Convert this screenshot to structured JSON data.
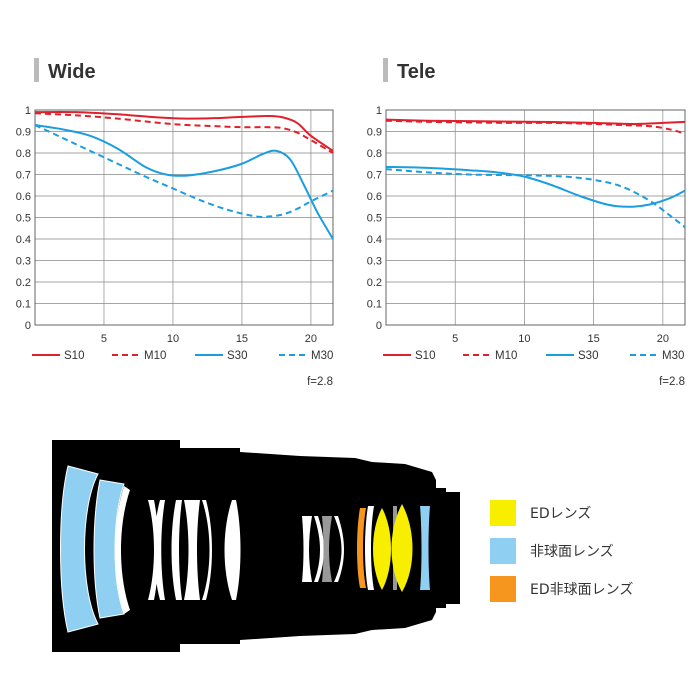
{
  "chart_data": [
    {
      "type": "line",
      "title": "Wide",
      "xlim": [
        0,
        21.6
      ],
      "ylim": [
        0,
        1
      ],
      "xticks": [
        5,
        10,
        15,
        20
      ],
      "yticks": [
        0,
        0.1,
        0.2,
        0.3,
        0.4,
        0.5,
        0.6,
        0.7,
        0.8,
        0.9,
        1
      ],
      "ytick_labels": [
        "0",
        "0.1",
        "0.2",
        "0.3",
        "0.4",
        "0.5",
        "0.6",
        "0.7",
        "0.8",
        "0.9",
        "1"
      ],
      "grid": true,
      "note": "f=2.8",
      "series": [
        {
          "name": "S10",
          "color": "#e0212b",
          "dash": false,
          "x": [
            0,
            3,
            6,
            9,
            11,
            13,
            15,
            17,
            18,
            19,
            20,
            21.6
          ],
          "y": [
            0.99,
            0.99,
            0.98,
            0.965,
            0.96,
            0.962,
            0.968,
            0.972,
            0.965,
            0.94,
            0.88,
            0.81
          ]
        },
        {
          "name": "M10",
          "color": "#e0212b",
          "dash": true,
          "x": [
            0,
            3,
            6,
            9,
            11,
            13,
            15,
            17,
            18,
            19,
            20,
            21.6
          ],
          "y": [
            0.985,
            0.975,
            0.96,
            0.94,
            0.93,
            0.925,
            0.92,
            0.92,
            0.915,
            0.895,
            0.86,
            0.8
          ]
        },
        {
          "name": "S30",
          "color": "#1a9ee0",
          "dash": false,
          "x": [
            0,
            2,
            4,
            6,
            8,
            9.5,
            11,
            13,
            15,
            16.5,
            17.5,
            18.5,
            19.5,
            20.5,
            21.6
          ],
          "y": [
            0.93,
            0.91,
            0.88,
            0.82,
            0.735,
            0.7,
            0.695,
            0.715,
            0.75,
            0.795,
            0.81,
            0.77,
            0.65,
            0.52,
            0.4
          ]
        },
        {
          "name": "M30",
          "color": "#1a9ee0",
          "dash": true,
          "x": [
            0,
            2,
            4,
            6,
            8,
            10,
            12,
            14,
            16,
            17,
            18,
            19,
            20,
            21.6
          ],
          "y": [
            0.93,
            0.87,
            0.81,
            0.75,
            0.69,
            0.635,
            0.58,
            0.535,
            0.505,
            0.505,
            0.515,
            0.54,
            0.575,
            0.625
          ]
        }
      ],
      "legend": [
        "S10",
        "M10",
        "S30",
        "M30"
      ],
      "legend_position": "bottom"
    },
    {
      "type": "line",
      "title": "Tele",
      "xlim": [
        0,
        21.6
      ],
      "ylim": [
        0,
        1
      ],
      "xticks": [
        5,
        10,
        15,
        20
      ],
      "yticks": [
        0,
        0.1,
        0.2,
        0.3,
        0.4,
        0.5,
        0.6,
        0.7,
        0.8,
        0.9,
        1
      ],
      "ytick_labels": [
        "0",
        "0.1",
        "0.2",
        "0.3",
        "0.4",
        "0.5",
        "0.6",
        "0.7",
        "0.8",
        "0.9",
        "1"
      ],
      "grid": true,
      "note": "f=2.8",
      "series": [
        {
          "name": "S10",
          "color": "#e0212b",
          "dash": false,
          "x": [
            0,
            3,
            6,
            9,
            12,
            15,
            18,
            20,
            21.6
          ],
          "y": [
            0.955,
            0.95,
            0.948,
            0.946,
            0.944,
            0.94,
            0.935,
            0.94,
            0.945
          ]
        },
        {
          "name": "M10",
          "color": "#e0212b",
          "dash": true,
          "x": [
            0,
            3,
            6,
            9,
            12,
            15,
            17,
            19,
            20.5,
            21.6
          ],
          "y": [
            0.95,
            0.945,
            0.942,
            0.94,
            0.94,
            0.935,
            0.93,
            0.925,
            0.91,
            0.89
          ]
        },
        {
          "name": "S30",
          "color": "#1a9ee0",
          "dash": false,
          "x": [
            0,
            2,
            4,
            6,
            8,
            10,
            12,
            14,
            16,
            17.5,
            19,
            20.5,
            21.6
          ],
          "y": [
            0.735,
            0.733,
            0.728,
            0.72,
            0.71,
            0.69,
            0.65,
            0.6,
            0.56,
            0.55,
            0.56,
            0.59,
            0.625
          ]
        },
        {
          "name": "M30",
          "color": "#1a9ee0",
          "dash": true,
          "x": [
            0,
            3,
            6,
            9,
            11,
            13,
            15,
            17,
            19,
            20.5,
            21.6
          ],
          "y": [
            0.725,
            0.71,
            0.7,
            0.697,
            0.695,
            0.69,
            0.675,
            0.645,
            0.58,
            0.51,
            0.455
          ]
        }
      ],
      "legend": [
        "S10",
        "M10",
        "S30",
        "M30"
      ],
      "legend_position": "bottom"
    }
  ],
  "lens_legend": [
    {
      "label": "EDレンズ",
      "color": "#f7ee00"
    },
    {
      "label": "非球面レンズ",
      "color": "#8fd0f2"
    },
    {
      "label": "ED非球面レンズ",
      "color": "#f7961e"
    }
  ],
  "colors": {
    "lens_body": "#000000",
    "glass": "#ffffff",
    "gray_element": "#999999"
  }
}
